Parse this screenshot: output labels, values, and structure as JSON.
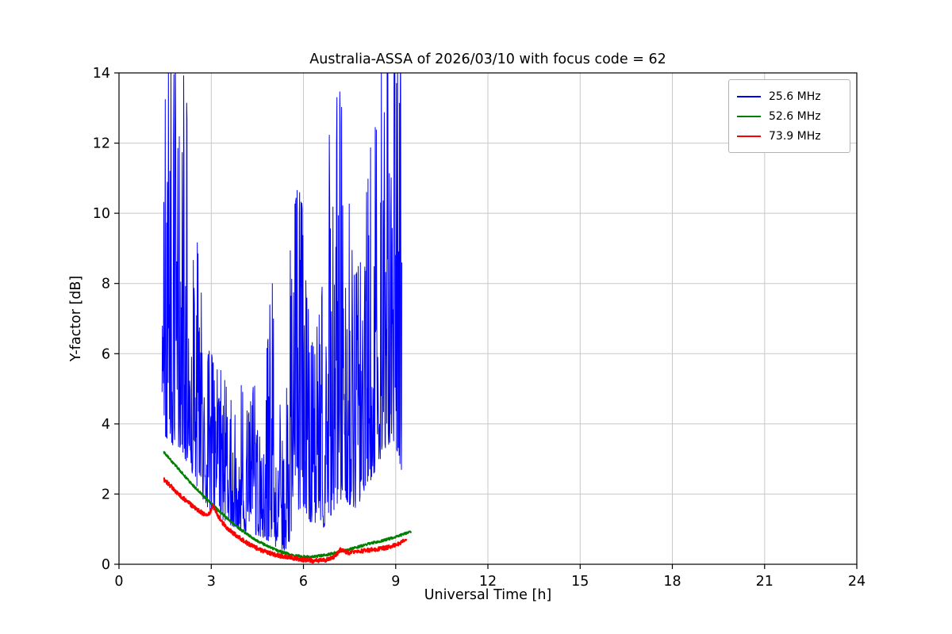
{
  "chart_data": {
    "type": "line",
    "title": "Australia-ASSA of 2026/03/10 with focus code = 62",
    "xlabel": "Universal Time [h]",
    "ylabel": "Y-factor [dB]",
    "xlim": [
      0,
      24
    ],
    "ylim": [
      0,
      14
    ],
    "xticks": [
      0,
      3,
      6,
      9,
      12,
      15,
      18,
      21,
      24
    ],
    "yticks": [
      0,
      2,
      4,
      6,
      8,
      10,
      12,
      14
    ],
    "grid": true,
    "grid_color": "#c8c8c8",
    "axis_color": "#000000",
    "background": "#ffffff",
    "legend_position": "upper right",
    "noise_seed": 42,
    "series": [
      {
        "name": "25.6 MHz",
        "color": "#0000ff",
        "style": "noisy-band",
        "line_width": 1.0,
        "envelope": [
          [
            1.4,
            3.8,
            11.4
          ],
          [
            1.55,
            3.6,
            14.6
          ],
          [
            1.75,
            3.4,
            14.6
          ],
          [
            1.95,
            3.3,
            14.6
          ],
          [
            2.15,
            3.0,
            14.6
          ],
          [
            2.3,
            2.8,
            10.7
          ],
          [
            2.5,
            2.3,
            9.8
          ],
          [
            2.7,
            1.9,
            7.5
          ],
          [
            2.9,
            1.6,
            6.3
          ],
          [
            3.1,
            1.4,
            5.8
          ],
          [
            3.3,
            1.3,
            6.0
          ],
          [
            3.5,
            1.2,
            5.0
          ],
          [
            3.75,
            1.05,
            4.6
          ],
          [
            4.0,
            1.0,
            5.2
          ],
          [
            4.2,
            0.9,
            4.4
          ],
          [
            4.4,
            0.85,
            5.4
          ],
          [
            4.6,
            0.8,
            3.6
          ],
          [
            4.8,
            0.7,
            6.0
          ],
          [
            5.0,
            0.6,
            9.3
          ],
          [
            5.2,
            0.4,
            7.0
          ],
          [
            5.35,
            0.35,
            2.6
          ],
          [
            5.5,
            0.5,
            9.0
          ],
          [
            5.7,
            1.3,
            10.2
          ],
          [
            5.9,
            1.6,
            11.3
          ],
          [
            6.1,
            1.4,
            8.2
          ],
          [
            6.3,
            1.1,
            6.5
          ],
          [
            6.5,
            0.9,
            7.3
          ],
          [
            6.7,
            1.1,
            9.5
          ],
          [
            6.9,
            1.4,
            13.8
          ],
          [
            7.1,
            1.7,
            14.6
          ],
          [
            7.3,
            1.9,
            12.5
          ],
          [
            7.5,
            1.7,
            10.6
          ],
          [
            7.7,
            1.6,
            8.2
          ],
          [
            7.9,
            1.9,
            9.4
          ],
          [
            8.1,
            2.2,
            11.0
          ],
          [
            8.3,
            2.6,
            14.6
          ],
          [
            8.5,
            3.0,
            14.6
          ],
          [
            8.7,
            3.3,
            14.6
          ],
          [
            8.9,
            3.6,
            14.6
          ],
          [
            9.05,
            3.2,
            14.6
          ],
          [
            9.2,
            2.6,
            14.6
          ]
        ]
      },
      {
        "name": "52.6 MHz",
        "color": "#008000",
        "style": "smooth-noisy",
        "line_width": 1.9,
        "noise": 0.035,
        "points": [
          [
            1.45,
            3.2
          ],
          [
            1.6,
            3.05
          ],
          [
            1.8,
            2.85
          ],
          [
            2.0,
            2.65
          ],
          [
            2.2,
            2.45
          ],
          [
            2.4,
            2.25
          ],
          [
            2.6,
            2.08
          ],
          [
            2.8,
            1.9
          ],
          [
            3.0,
            1.74
          ],
          [
            3.2,
            1.56
          ],
          [
            3.4,
            1.4
          ],
          [
            3.6,
            1.25
          ],
          [
            3.8,
            1.1
          ],
          [
            4.0,
            0.96
          ],
          [
            4.2,
            0.84
          ],
          [
            4.4,
            0.72
          ],
          [
            4.6,
            0.62
          ],
          [
            4.8,
            0.53
          ],
          [
            5.0,
            0.45
          ],
          [
            5.2,
            0.38
          ],
          [
            5.4,
            0.32
          ],
          [
            5.6,
            0.27
          ],
          [
            5.8,
            0.24
          ],
          [
            6.0,
            0.22
          ],
          [
            6.2,
            0.21
          ],
          [
            6.4,
            0.22
          ],
          [
            6.6,
            0.25
          ],
          [
            6.8,
            0.28
          ],
          [
            7.0,
            0.32
          ],
          [
            7.2,
            0.36
          ],
          [
            7.4,
            0.4
          ],
          [
            7.6,
            0.45
          ],
          [
            7.8,
            0.5
          ],
          [
            8.0,
            0.55
          ],
          [
            8.2,
            0.6
          ],
          [
            8.4,
            0.64
          ],
          [
            8.6,
            0.68
          ],
          [
            8.8,
            0.73
          ],
          [
            9.0,
            0.78
          ],
          [
            9.2,
            0.84
          ],
          [
            9.4,
            0.9
          ],
          [
            9.5,
            0.93
          ]
        ]
      },
      {
        "name": "73.9 MHz",
        "color": "#ff0000",
        "style": "smooth-noisy",
        "line_width": 2.1,
        "noise": 0.06,
        "points": [
          [
            1.45,
            2.42
          ],
          [
            1.6,
            2.3
          ],
          [
            1.8,
            2.12
          ],
          [
            2.0,
            1.95
          ],
          [
            2.2,
            1.8
          ],
          [
            2.4,
            1.65
          ],
          [
            2.6,
            1.52
          ],
          [
            2.8,
            1.42
          ],
          [
            2.95,
            1.45
          ],
          [
            3.05,
            1.68
          ],
          [
            3.15,
            1.5
          ],
          [
            3.3,
            1.25
          ],
          [
            3.5,
            1.05
          ],
          [
            3.7,
            0.9
          ],
          [
            3.9,
            0.76
          ],
          [
            4.1,
            0.64
          ],
          [
            4.3,
            0.54
          ],
          [
            4.5,
            0.45
          ],
          [
            4.7,
            0.38
          ],
          [
            4.9,
            0.32
          ],
          [
            5.1,
            0.27
          ],
          [
            5.3,
            0.23
          ],
          [
            5.5,
            0.2
          ],
          [
            5.7,
            0.17
          ],
          [
            5.9,
            0.14
          ],
          [
            6.1,
            0.12
          ],
          [
            6.3,
            0.1
          ],
          [
            6.5,
            0.1
          ],
          [
            6.7,
            0.12
          ],
          [
            6.9,
            0.16
          ],
          [
            7.05,
            0.26
          ],
          [
            7.2,
            0.42
          ],
          [
            7.35,
            0.36
          ],
          [
            7.5,
            0.33
          ],
          [
            7.7,
            0.35
          ],
          [
            7.9,
            0.38
          ],
          [
            8.1,
            0.4
          ],
          [
            8.3,
            0.42
          ],
          [
            8.5,
            0.44
          ],
          [
            8.7,
            0.47
          ],
          [
            8.9,
            0.52
          ],
          [
            9.1,
            0.58
          ],
          [
            9.25,
            0.65
          ],
          [
            9.35,
            0.72
          ]
        ]
      }
    ]
  }
}
